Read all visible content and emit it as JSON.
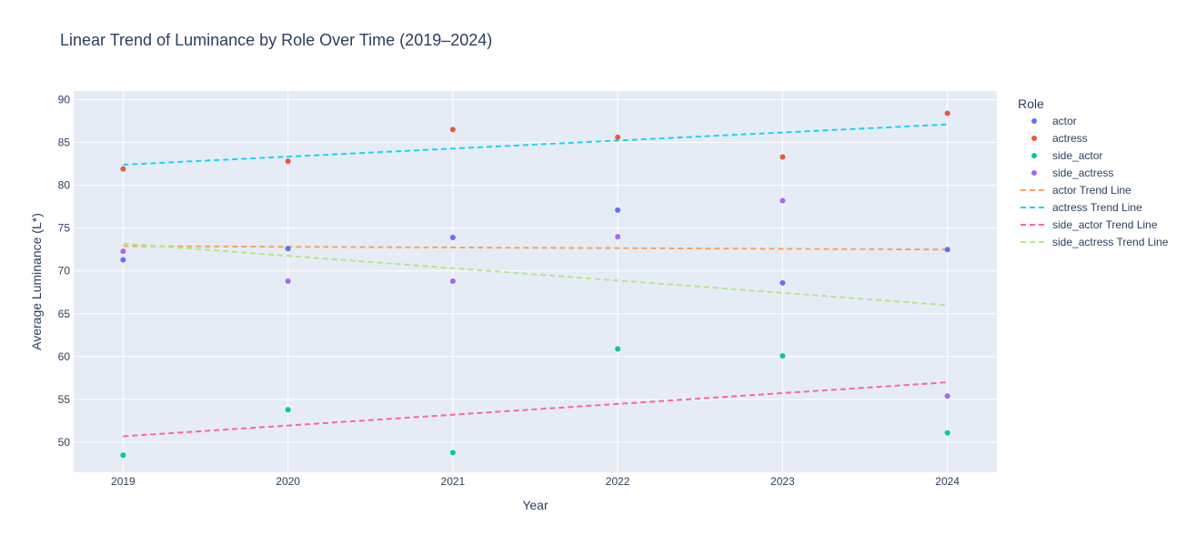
{
  "chart_data": {
    "type": "scatter",
    "title": "Linear Trend of Luminance by Role Over Time (2019–2024)",
    "xlabel": "Year",
    "ylabel": "Average Luminance (L*)",
    "xlim": [
      2018.7,
      2024.3
    ],
    "ylim": [
      46.5,
      91
    ],
    "x_ticks": [
      2019,
      2020,
      2021,
      2022,
      2023,
      2024
    ],
    "y_ticks": [
      50,
      55,
      60,
      65,
      70,
      75,
      80,
      85,
      90
    ],
    "grid": true,
    "legend": {
      "title": "Role",
      "position": "right"
    },
    "series": [
      {
        "name": "actor",
        "mode": "markers",
        "color": "#636efa",
        "x": [
          2019,
          2020,
          2021,
          2022,
          2023,
          2024
        ],
        "y": [
          71.3,
          72.6,
          73.9,
          77.1,
          68.6,
          72.5
        ]
      },
      {
        "name": "actress",
        "mode": "markers",
        "color": "#ef553b",
        "x": [
          2019,
          2020,
          2021,
          2022,
          2023,
          2024
        ],
        "y": [
          81.9,
          82.8,
          86.5,
          85.6,
          83.3,
          88.4
        ]
      },
      {
        "name": "side_actor",
        "mode": "markers",
        "color": "#00cc96",
        "x": [
          2019,
          2020,
          2021,
          2022,
          2023,
          2024
        ],
        "y": [
          48.5,
          53.8,
          48.8,
          60.9,
          60.1,
          51.1
        ]
      },
      {
        "name": "side_actress",
        "mode": "markers",
        "color": "#ab63fa",
        "x": [
          2019,
          2020,
          2021,
          2022,
          2023,
          2024
        ],
        "y": [
          72.3,
          68.8,
          68.8,
          74.0,
          78.2,
          55.4
        ]
      },
      {
        "name": "actor Trend Line",
        "mode": "dashed-line",
        "color": "#ffa15a",
        "x": [
          2019,
          2024
        ],
        "y": [
          72.9,
          72.5
        ]
      },
      {
        "name": "actress Trend Line",
        "mode": "dashed-line",
        "color": "#19d3f3",
        "x": [
          2019,
          2024
        ],
        "y": [
          82.4,
          87.1
        ]
      },
      {
        "name": "side_actor Trend Line",
        "mode": "dashed-line",
        "color": "#ff6692",
        "x": [
          2019,
          2024
        ],
        "y": [
          50.7,
          57.0
        ]
      },
      {
        "name": "side_actress Trend Line",
        "mode": "dashed-line",
        "color": "#b6e880",
        "x": [
          2019,
          2024
        ],
        "y": [
          73.2,
          66.0
        ]
      }
    ]
  }
}
